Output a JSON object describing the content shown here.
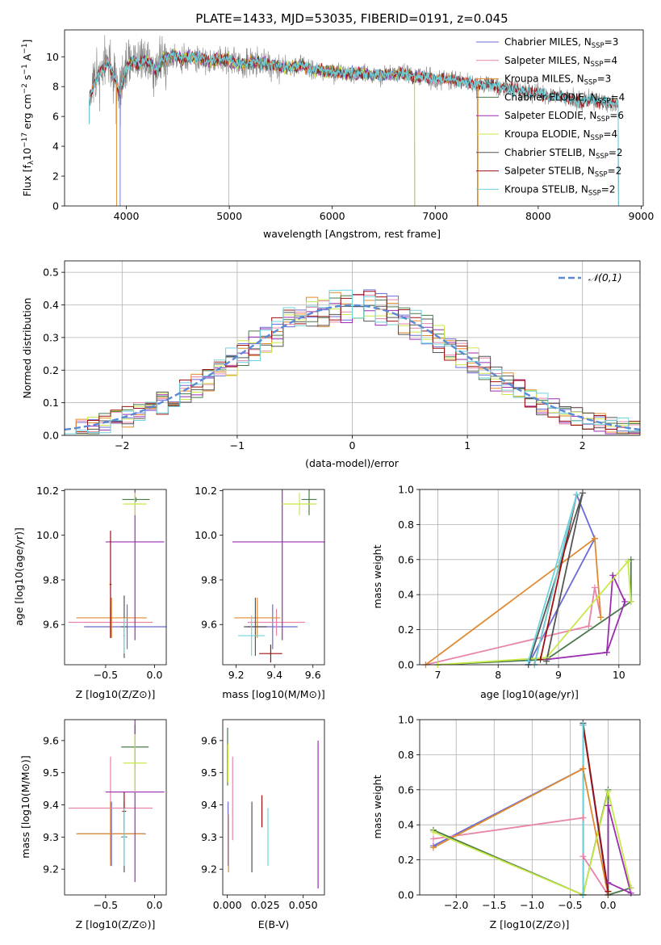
{
  "figure_title": "PLATE=1433, MJD=53035, FIBERID=0191, z=0.045",
  "colors": {
    "Chabrier MILES": "#6b6bd6",
    "Salpeter MILES": "#e884a8",
    "Kroupa MILES": "#e08a2e",
    "Chabrier ELODIE": "#4a7a4a",
    "Salpeter ELODIE": "#9a2db0",
    "Kroupa ELODIE": "#c8e84a",
    "Chabrier STELIB": "#555555",
    "Salpeter STELIB": "#9e1010",
    "Kroupa STELIB": "#6fd3dc"
  },
  "chart_data": [
    {
      "id": "spectrum",
      "type": "line",
      "title": "PLATE=1433, MJD=53035, FIBERID=0191, z=0.045",
      "xlabel": "wavelength [Angstrom, rest frame]",
      "ylabel": "Flux [f_λ 10^-17 erg cm^-2 s^-1 A^-1]",
      "xlim": [
        3400,
        9020
      ],
      "ylim": [
        0,
        11.8
      ],
      "xticks": [
        4000,
        5000,
        6000,
        7000,
        8000,
        9000
      ],
      "yticks": [
        0,
        2,
        4,
        6,
        8,
        10
      ],
      "grid": false,
      "legend": "top-right",
      "observed": {
        "x": [
          3640,
          3700,
          3760,
          3820,
          3880,
          3940,
          4000,
          4060,
          4120,
          4180,
          4240,
          4300,
          4360,
          4420,
          4480,
          4540,
          4600,
          4700,
          4800,
          4900,
          5000,
          5100,
          5200,
          5300,
          5400,
          5500,
          5600,
          5700,
          5800,
          5900,
          6000,
          6100,
          6200,
          6300,
          6400,
          6500,
          6600,
          6700,
          6800,
          6900,
          7000,
          7100,
          7200,
          7300,
          7400,
          7500,
          7600,
          7700,
          7800,
          7900,
          8000,
          8100,
          8200,
          8300,
          8400,
          8500,
          8600,
          8700,
          8780
        ],
        "y": [
          7.2,
          8.3,
          9.1,
          9.6,
          8.7,
          7.5,
          9.3,
          9.7,
          9.4,
          9.8,
          9.5,
          8.9,
          9.9,
          10.0,
          10.1,
          9.8,
          10.0,
          9.9,
          9.7,
          9.8,
          9.8,
          9.5,
          9.6,
          9.6,
          9.5,
          9.3,
          9.3,
          9.5,
          9.1,
          9.1,
          9.0,
          8.9,
          8.9,
          8.9,
          8.7,
          8.8,
          8.8,
          8.8,
          8.6,
          8.7,
          8.5,
          8.5,
          8.4,
          8.3,
          8.1,
          8.2,
          8.0,
          7.9,
          7.8,
          7.6,
          7.6,
          7.3,
          7.4,
          7.2,
          7.0,
          7.1,
          7.0,
          6.9,
          6.8
        ]
      },
      "series": [
        {
          "name": "Chabrier MILES",
          "label_nssp": "3"
        },
        {
          "name": "Salpeter MILES",
          "label_nssp": "4"
        },
        {
          "name": "Kroupa MILES",
          "label_nssp": "3"
        },
        {
          "name": "Chabrier ELODIE",
          "label_nssp": "4"
        },
        {
          "name": "Salpeter ELODIE",
          "label_nssp": "6"
        },
        {
          "name": "Kroupa ELODIE",
          "label_nssp": "4"
        },
        {
          "name": "Chabrier STELIB",
          "label_nssp": "2"
        },
        {
          "name": "Salpeter STELIB",
          "label_nssp": "2"
        },
        {
          "name": "Kroupa STELIB",
          "label_nssp": "2"
        }
      ],
      "model_ranges": {
        "MILES": [
          3640,
          7410
        ],
        "ELODIE": [
          3900,
          6800
        ],
        "STELIB": [
          3640,
          8780
        ]
      }
    },
    {
      "id": "residuals",
      "type": "bar",
      "xlabel": "(data-model)/error",
      "ylabel": "Normed distribution",
      "xlim": [
        -2.5,
        2.5
      ],
      "ylim": [
        0,
        0.535
      ],
      "xticks": [
        -2,
        -1,
        0,
        1,
        2
      ],
      "yticks": [
        0.0,
        0.1,
        0.2,
        0.3,
        0.4,
        0.5
      ],
      "grid": true,
      "legend": "top-right",
      "legend_label": "𝒩(0,1)",
      "bin_width": 0.1
    },
    {
      "id": "age_vs_Z",
      "type": "scatter",
      "xlabel": "Z [log10(Z/Z⊙)]",
      "ylabel": "age [log10(age/yr)]",
      "xlim": [
        -0.92,
        0.12
      ],
      "ylim": [
        9.42,
        10.205
      ],
      "xticks": [
        -0.5,
        0.0
      ],
      "yticks": [
        9.6,
        9.8,
        10.0,
        10.2
      ]
    },
    {
      "id": "age_vs_mass",
      "type": "scatter",
      "xlabel": "mass [log10(M/M⊙)]",
      "ylabel": "",
      "xlim": [
        9.13,
        9.66
      ],
      "ylim": [
        9.42,
        10.205
      ],
      "xticks": [
        9.2,
        9.4,
        9.6
      ],
      "yticks": [
        9.6,
        9.8,
        10.0,
        10.2
      ]
    },
    {
      "id": "weight_vs_age",
      "type": "line",
      "xlabel": "age [log10(age/yr)]",
      "ylabel": "mass weight",
      "xlim": [
        6.7,
        10.35
      ],
      "ylim": [
        0,
        1.0
      ],
      "xticks": [
        7,
        8,
        9,
        10
      ],
      "yticks": [
        0.0,
        0.2,
        0.4,
        0.6,
        0.8,
        1.0
      ],
      "grid": true,
      "series": [
        {
          "name": "Chabrier MILES",
          "x": [
            8.5,
            9.6,
            9.3
          ],
          "y": [
            0.0,
            0.72,
            0.97
          ]
        },
        {
          "name": "Salpeter MILES",
          "x": [
            6.8,
            9.5,
            9.6,
            9.7
          ],
          "y": [
            0.0,
            0.22,
            0.44,
            0.27
          ]
        },
        {
          "name": "Kroupa MILES",
          "x": [
            6.8,
            9.6,
            9.7
          ],
          "y": [
            0.0,
            0.72,
            0.27
          ]
        },
        {
          "name": "Chabrier ELODIE",
          "x": [
            7.0,
            8.8,
            10.2,
            10.2
          ],
          "y": [
            0.0,
            0.03,
            0.36,
            0.6
          ]
        },
        {
          "name": "Salpeter ELODIE",
          "x": [
            8.8,
            9.8,
            9.9,
            10.1,
            9.8
          ],
          "y": [
            0.03,
            0.07,
            0.51,
            0.36,
            0.07
          ]
        },
        {
          "name": "Kroupa ELODIE",
          "x": [
            7.0,
            8.8,
            10.15,
            10.2
          ],
          "y": [
            0.0,
            0.04,
            0.59,
            0.36
          ]
        },
        {
          "name": "Chabrier STELIB",
          "x": [
            8.5,
            9.4,
            8.8
          ],
          "y": [
            0.0,
            0.98,
            0.02
          ]
        },
        {
          "name": "Salpeter STELIB",
          "x": [
            8.6,
            9.3,
            8.7
          ],
          "y": [
            0.0,
            0.97,
            0.03
          ]
        },
        {
          "name": "Kroupa STELIB",
          "x": [
            8.6,
            9.3,
            8.5
          ],
          "y": [
            0.0,
            0.97,
            0.02
          ]
        }
      ]
    },
    {
      "id": "mass_vs_Z",
      "type": "scatter",
      "xlabel": "Z [log10(Z/Z⊙)]",
      "ylabel": "mass [log10(M/M⊙)]",
      "xlim": [
        -0.92,
        0.12
      ],
      "ylim": [
        9.12,
        9.665
      ],
      "xticks": [
        -0.5,
        0.0
      ],
      "yticks": [
        9.2,
        9.3,
        9.4,
        9.5,
        9.6
      ]
    },
    {
      "id": "mass_vs_ebv",
      "type": "scatter",
      "xlabel": "E(B-V)",
      "ylabel": "",
      "xlim": [
        -0.003,
        0.064
      ],
      "ylim": [
        9.12,
        9.665
      ],
      "xticks": [
        0.0,
        0.025,
        0.05
      ],
      "yticks": [
        9.2,
        9.3,
        9.4,
        9.5,
        9.6
      ],
      "points": [
        {
          "name": "Chabrier MILES",
          "x": 0.0005,
          "y": 9.31,
          "err": 0.1
        },
        {
          "name": "Salpeter MILES",
          "x": 0.0035,
          "y": 9.42,
          "err": 0.13
        },
        {
          "name": "Kroupa MILES",
          "x": 0.0008,
          "y": 9.28,
          "err": 0.09
        },
        {
          "name": "Chabrier ELODIE",
          "x": 0.0002,
          "y": 9.55,
          "err": 0.09
        },
        {
          "name": "Salpeter ELODIE",
          "x": 0.0598,
          "y": 9.37,
          "err": 0.23
        },
        {
          "name": "Kroupa ELODIE",
          "x": 0.0005,
          "y": 9.53,
          "err": 0.06
        },
        {
          "name": "Chabrier STELIB",
          "x": 0.0162,
          "y": 9.3,
          "err": 0.11
        },
        {
          "name": "Salpeter STELIB",
          "x": 0.0228,
          "y": 9.38,
          "err": 0.05
        },
        {
          "name": "Kroupa STELIB",
          "x": 0.0268,
          "y": 9.3,
          "err": 0.09
        }
      ]
    },
    {
      "id": "weight_vs_Z",
      "type": "line",
      "xlabel": "Z [log10(Z/Z⊙)]",
      "ylabel": "mass weight",
      "xlim": [
        -2.48,
        0.42
      ],
      "ylim": [
        0,
        1.0
      ],
      "xticks": [
        -2.0,
        -1.5,
        -1.0,
        -0.5,
        0.0
      ],
      "yticks": [
        0.0,
        0.2,
        0.4,
        0.6,
        0.8,
        1.0
      ],
      "grid": true,
      "series": [
        {
          "name": "Chabrier MILES",
          "x": [
            -2.3,
            -0.33,
            -0.33,
            0.0
          ],
          "y": [
            0.28,
            0.72,
            0.97,
            0.0
          ]
        },
        {
          "name": "Salpeter MILES",
          "x": [
            -2.3,
            -0.33,
            -0.33,
            0.0
          ],
          "y": [
            0.32,
            0.44,
            0.22,
            0.0
          ]
        },
        {
          "name": "Kroupa MILES",
          "x": [
            -2.3,
            -0.33,
            0.0
          ],
          "y": [
            0.27,
            0.72,
            0.0
          ]
        },
        {
          "name": "Chabrier ELODIE",
          "x": [
            -2.3,
            -0.33,
            0.0,
            0.0,
            0.3
          ],
          "y": [
            0.37,
            0.0,
            0.6,
            0.0,
            0.04
          ]
        },
        {
          "name": "Salpeter ELODIE",
          "x": [
            0.0,
            0.0,
            0.3,
            0.0
          ],
          "y": [
            0.51,
            0.07,
            0.01,
            0.51
          ]
        },
        {
          "name": "Kroupa ELODIE",
          "x": [
            -2.3,
            -0.33,
            0.0,
            0.3
          ],
          "y": [
            0.36,
            0.0,
            0.59,
            0.04
          ]
        },
        {
          "name": "Chabrier STELIB",
          "x": [
            -0.33,
            -0.33,
            0.0
          ],
          "y": [
            0.0,
            0.98,
            0.02
          ]
        },
        {
          "name": "Salpeter STELIB",
          "x": [
            -0.33,
            -0.33,
            0.0
          ],
          "y": [
            0.0,
            0.97,
            0.02
          ]
        },
        {
          "name": "Kroupa STELIB",
          "x": [
            -0.33,
            -0.33
          ],
          "y": [
            0.0,
            0.97
          ]
        }
      ]
    }
  ],
  "error_points": {
    "age_vs_Z": [
      {
        "name": "Chabrier MILES",
        "x": -0.28,
        "y": 9.59,
        "xerr": 0.44,
        "yerr": 0.1
      },
      {
        "name": "Salpeter MILES",
        "x": -0.45,
        "y": 9.61,
        "xerr": 0.43,
        "yerr": 0.07
      },
      {
        "name": "Kroupa MILES",
        "x": -0.44,
        "y": 9.63,
        "xerr": 0.36,
        "yerr": 0.09
      },
      {
        "name": "Chabrier ELODIE",
        "x": -0.19,
        "y": 10.16,
        "xerr": 0.14,
        "yerr": 0.01
      },
      {
        "name": "Salpeter ELODIE",
        "x": -0.2,
        "y": 9.97,
        "xerr": 0.3,
        "yerr": 0.44
      },
      {
        "name": "Kroupa ELODIE",
        "x": -0.2,
        "y": 10.14,
        "xerr": 0.12,
        "yerr": 0.05
      },
      {
        "name": "Chabrier STELIB",
        "x": -0.31,
        "y": 9.59,
        "xerr": 0.03,
        "yerr": 0.14
      },
      {
        "name": "Salpeter STELIB",
        "x": -0.45,
        "y": 9.78,
        "xerr": 0.01,
        "yerr": 0.24
      },
      {
        "name": "Kroupa STELIB",
        "x": -0.31,
        "y": 9.55,
        "xerr": 0.01,
        "yerr": 0.08
      }
    ],
    "age_vs_mass": [
      {
        "name": "Chabrier MILES",
        "x": 9.39,
        "y": 9.59,
        "xerr": 0.13,
        "yerr": 0.1
      },
      {
        "name": "Salpeter MILES",
        "x": 9.41,
        "y": 9.61,
        "xerr": 0.15,
        "yerr": 0.06
      },
      {
        "name": "Kroupa MILES",
        "x": 9.31,
        "y": 9.63,
        "xerr": 0.12,
        "yerr": 0.09
      },
      {
        "name": "Chabrier ELODIE",
        "x": 9.58,
        "y": 10.16,
        "xerr": 0.04,
        "yerr": 0.07
      },
      {
        "name": "Salpeter ELODIE",
        "x": 9.44,
        "y": 9.97,
        "xerr": 0.26,
        "yerr": 0.44
      },
      {
        "name": "Kroupa ELODIE",
        "x": 9.53,
        "y": 10.14,
        "xerr": 0.09,
        "yerr": 0.05
      },
      {
        "name": "Chabrier STELIB",
        "x": 9.3,
        "y": 9.59,
        "xerr": 0.06,
        "yerr": 0.13
      },
      {
        "name": "Salpeter STELIB",
        "x": 9.38,
        "y": 9.47,
        "xerr": 0.06,
        "yerr": 0.04
      },
      {
        "name": "Kroupa STELIB",
        "x": 9.28,
        "y": 9.55,
        "xerr": 0.07,
        "yerr": 0.09
      }
    ],
    "mass_vs_Z": [
      {
        "name": "Chabrier MILES",
        "x": -0.44,
        "y": 9.31,
        "xerr": 0.35,
        "yerr": 0.1
      },
      {
        "name": "Salpeter MILES",
        "x": -0.45,
        "y": 9.39,
        "xerr": 0.43,
        "yerr": 0.16
      },
      {
        "name": "Kroupa MILES",
        "x": -0.45,
        "y": 9.31,
        "xerr": 0.35,
        "yerr": 0.1
      },
      {
        "name": "Chabrier ELODIE",
        "x": -0.2,
        "y": 9.58,
        "xerr": 0.14,
        "yerr": 0.07
      },
      {
        "name": "Salpeter ELODIE",
        "x": -0.2,
        "y": 9.44,
        "xerr": 0.3,
        "yerr": 0.28
      },
      {
        "name": "Kroupa ELODIE",
        "x": -0.2,
        "y": 9.53,
        "xerr": 0.12,
        "yerr": 0.09
      },
      {
        "name": "Chabrier STELIB",
        "x": -0.31,
        "y": 9.3,
        "xerr": 0.03,
        "yerr": 0.11
      },
      {
        "name": "Salpeter STELIB",
        "x": -0.31,
        "y": 9.38,
        "xerr": 0.02,
        "yerr": 0.06
      },
      {
        "name": "Kroupa STELIB",
        "x": -0.31,
        "y": 9.3,
        "xerr": 0.02,
        "yerr": 0.09
      }
    ]
  }
}
